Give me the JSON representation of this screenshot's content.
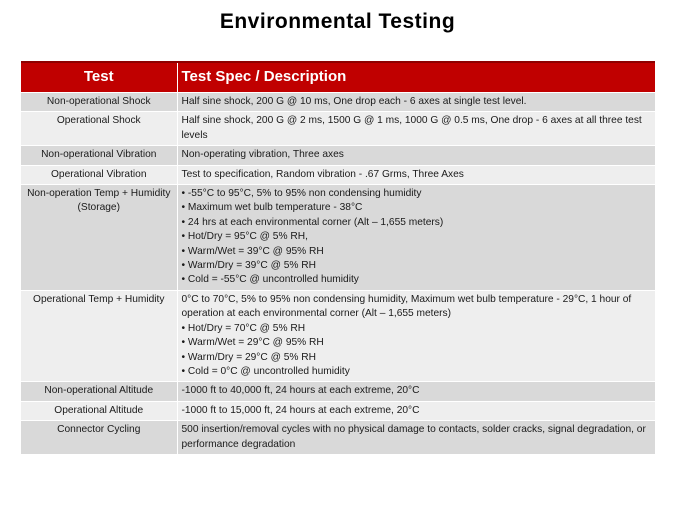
{
  "title": "Environmental Testing",
  "table": {
    "headers": [
      "Test",
      "Test Spec / Description"
    ],
    "rows": [
      {
        "test": "Non-operational Shock",
        "desc": "Half sine shock, 200 G @ 10 ms, One drop each - 6 axes at single test level.",
        "bullets": []
      },
      {
        "test": "Operational Shock",
        "desc": "Half sine shock, 200 G @ 2 ms, 1500 G @ 1 ms, 1000 G @ 0.5 ms, One drop - 6 axes at all three test levels",
        "bullets": []
      },
      {
        "test": "Non-operational Vibration",
        "desc": "Non-operating vibration, Three axes",
        "bullets": []
      },
      {
        "test": "Operational Vibration",
        "desc": "Test to specification, Random vibration - .67 Grms, Three Axes",
        "bullets": []
      },
      {
        "test": "Non-operation Temp + Humidity (Storage)",
        "desc": "",
        "bullets": [
          "-55°C to 95°C, 5% to 95% non condensing humidity",
          "Maximum wet bulb temperature - 38°C",
          "24 hrs at each environmental corner (Alt – 1,655 meters)",
          "Hot/Dry = 95°C @ 5% RH,",
          "Warm/Wet = 39°C @ 95% RH",
          "Warm/Dry = 39°C @ 5% RH",
          "Cold = -55°C @ uncontrolled humidity"
        ]
      },
      {
        "test": "Operational Temp + Humidity",
        "desc": "0°C to 70°C, 5% to 95% non condensing humidity, Maximum wet bulb temperature - 29°C, 1 hour of operation at each environmental corner (Alt – 1,655 meters)",
        "bullets": [
          "Hot/Dry = 70°C @ 5% RH",
          "Warm/Wet = 29°C @ 95% RH",
          "Warm/Dry = 29°C @ 5% RH",
          "Cold = 0°C @ uncontrolled humidity"
        ]
      },
      {
        "test": "Non-operational Altitude",
        "desc": "-1000 ft to 40,000 ft, 24 hours at each extreme, 20°C",
        "bullets": []
      },
      {
        "test": "Operational Altitude",
        "desc": "-1000 ft to 15,000 ft, 24 hours at each extreme, 20°C",
        "bullets": []
      },
      {
        "test": "Connector Cycling",
        "desc": "500 insertion/removal cycles with no physical damage to contacts, solder cracks, signal degradation, or performance degradation",
        "bullets": []
      }
    ]
  },
  "colors": {
    "header_bg": "#c00000",
    "row_odd": "#d9d9d9",
    "row_even": "#eeeeee"
  }
}
